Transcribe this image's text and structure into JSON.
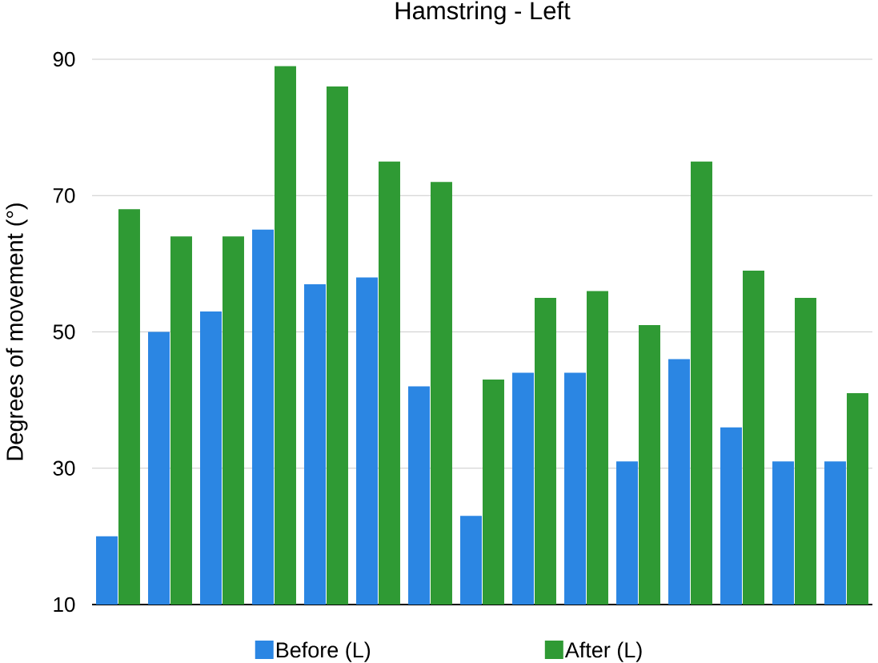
{
  "chart_data": {
    "type": "bar",
    "title": "Hamstring - Left",
    "ylabel": "Degrees of movement (°)",
    "categories": [
      null,
      null,
      null,
      null,
      null,
      null,
      null,
      null,
      null,
      null,
      null,
      null,
      null,
      null,
      null
    ],
    "series": [
      {
        "name": "Before (L)",
        "color": "#2b86e3",
        "values": [
          20,
          50,
          53,
          65,
          57,
          58,
          42,
          23,
          44,
          44,
          31,
          46,
          36,
          31,
          31
        ]
      },
      {
        "name": "After (L)",
        "color": "#2f9a34",
        "values": [
          68,
          64,
          64,
          89,
          86,
          75,
          72,
          43,
          55,
          56,
          51,
          75,
          59,
          55,
          41
        ]
      }
    ],
    "ylim": [
      10,
      90
    ],
    "yticks": [
      10,
      30,
      50,
      70,
      90
    ],
    "grid": "y",
    "legend": "bottom"
  }
}
